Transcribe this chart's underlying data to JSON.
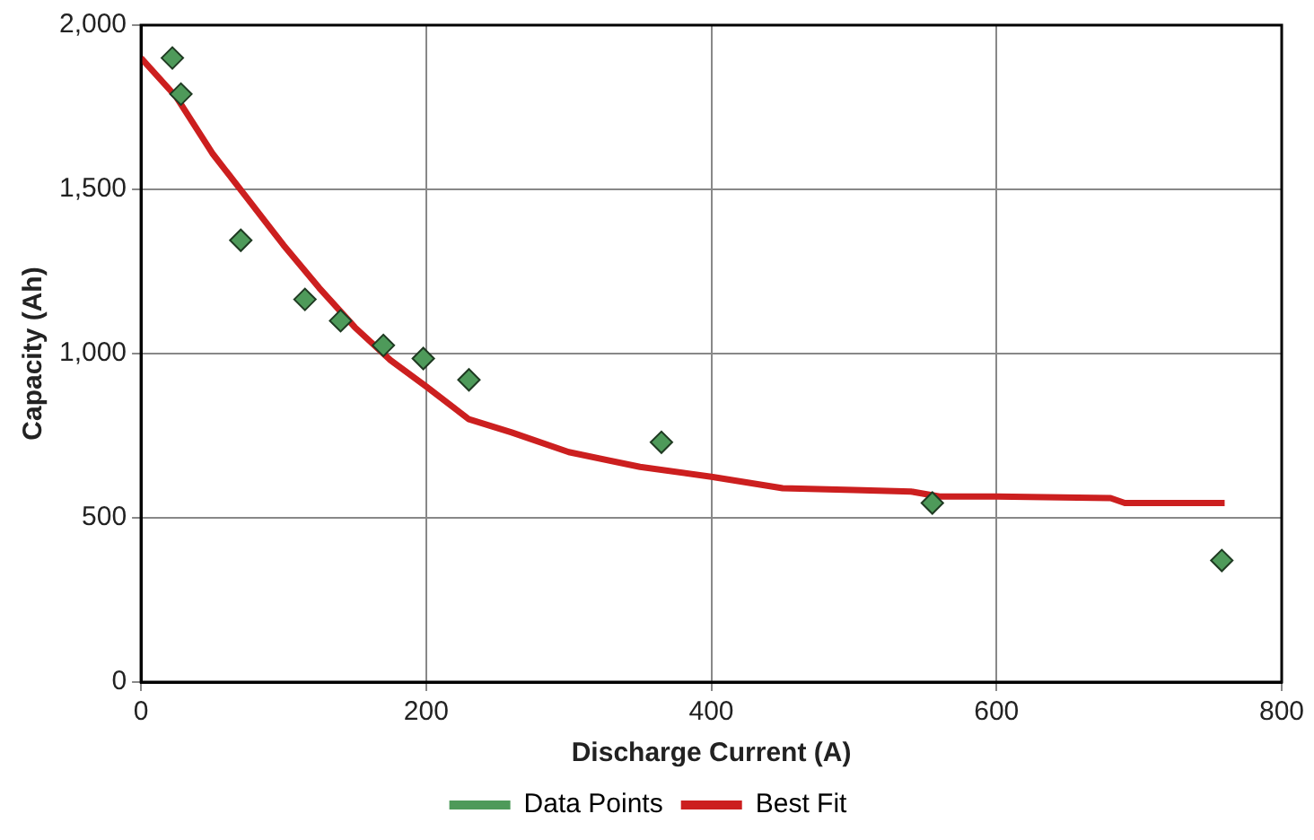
{
  "chart_data": {
    "type": "scatter",
    "xlabel": "Discharge Current (A)",
    "ylabel": "Capacity (Ah)",
    "xlim": [
      0,
      800
    ],
    "xticks": [
      0,
      200,
      400,
      600,
      800
    ],
    "ylim": [
      0,
      2000
    ],
    "yticks": [
      {
        "value": 0,
        "label": "0"
      },
      {
        "value": 500,
        "label": "500"
      },
      {
        "value": 1000,
        "label": "1,000"
      },
      {
        "value": 1500,
        "label": "1,500"
      },
      {
        "value": 2000,
        "label": "2,000"
      }
    ],
    "grid": true,
    "legend": "bottom",
    "marker": "diamond",
    "series": [
      {
        "name": "Data Points",
        "color": "#4e9a5a",
        "x": [
          22,
          28,
          70,
          115,
          140,
          170,
          198,
          230,
          365,
          555,
          758
        ],
        "values": [
          1900,
          1790,
          1345,
          1165,
          1100,
          1025,
          985,
          920,
          730,
          545,
          370
        ]
      },
      {
        "name": "Best Fit",
        "type": "line",
        "color": "#cc1f1f",
        "marker": "none",
        "x": [
          0,
          25,
          50,
          75,
          100,
          125,
          150,
          175,
          200,
          230,
          260,
          300,
          350,
          400,
          450,
          500,
          540,
          560,
          600,
          680,
          690,
          760
        ],
        "values": [
          1900,
          1780,
          1610,
          1470,
          1330,
          1200,
          1080,
          980,
          900,
          800,
          760,
          700,
          655,
          625,
          590,
          585,
          580,
          565,
          565,
          560,
          545,
          545
        ]
      }
    ]
  }
}
